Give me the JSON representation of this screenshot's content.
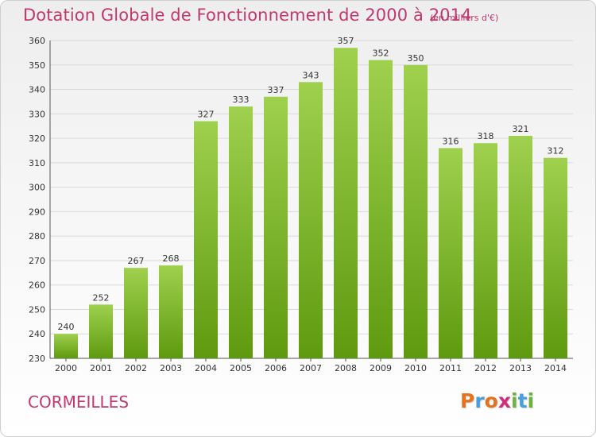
{
  "header": {
    "title": "Dotation Globale de Fonctionnement de 2000 à 2014",
    "unit": "(en milliers d'€)"
  },
  "footer": {
    "place": "CORMEILLES",
    "logo_letters": [
      "P",
      "r",
      "o",
      "x",
      "i",
      "t",
      "i"
    ],
    "logo_colors": [
      "#e8721c",
      "#4a9fd8",
      "#e8721c",
      "#cc2e7a",
      "#6cb33f",
      "#4a9fd8",
      "#6cb33f"
    ]
  },
  "colors": {
    "bar_top": "#9fd04e",
    "bar_bottom": "#5e9a10",
    "grid": "#d9d9d9",
    "axis": "#555555",
    "title": "#c0386e"
  },
  "chart_data": {
    "type": "bar",
    "title": "Dotation Globale de Fonctionnement de 2000 à 2014",
    "subtitle": "(en milliers d'€)",
    "categories": [
      "2000",
      "2001",
      "2002",
      "2003",
      "2004",
      "2005",
      "2006",
      "2007",
      "2008",
      "2009",
      "2010",
      "2011",
      "2012",
      "2013",
      "2014"
    ],
    "values": [
      240,
      252,
      267,
      268,
      327,
      333,
      337,
      343,
      357,
      352,
      350,
      316,
      318,
      321,
      312
    ],
    "ylim": [
      230,
      360
    ],
    "yticks": [
      230,
      240,
      250,
      260,
      270,
      280,
      290,
      300,
      310,
      320,
      330,
      340,
      350,
      360
    ],
    "grid": true,
    "data_labels": true
  }
}
